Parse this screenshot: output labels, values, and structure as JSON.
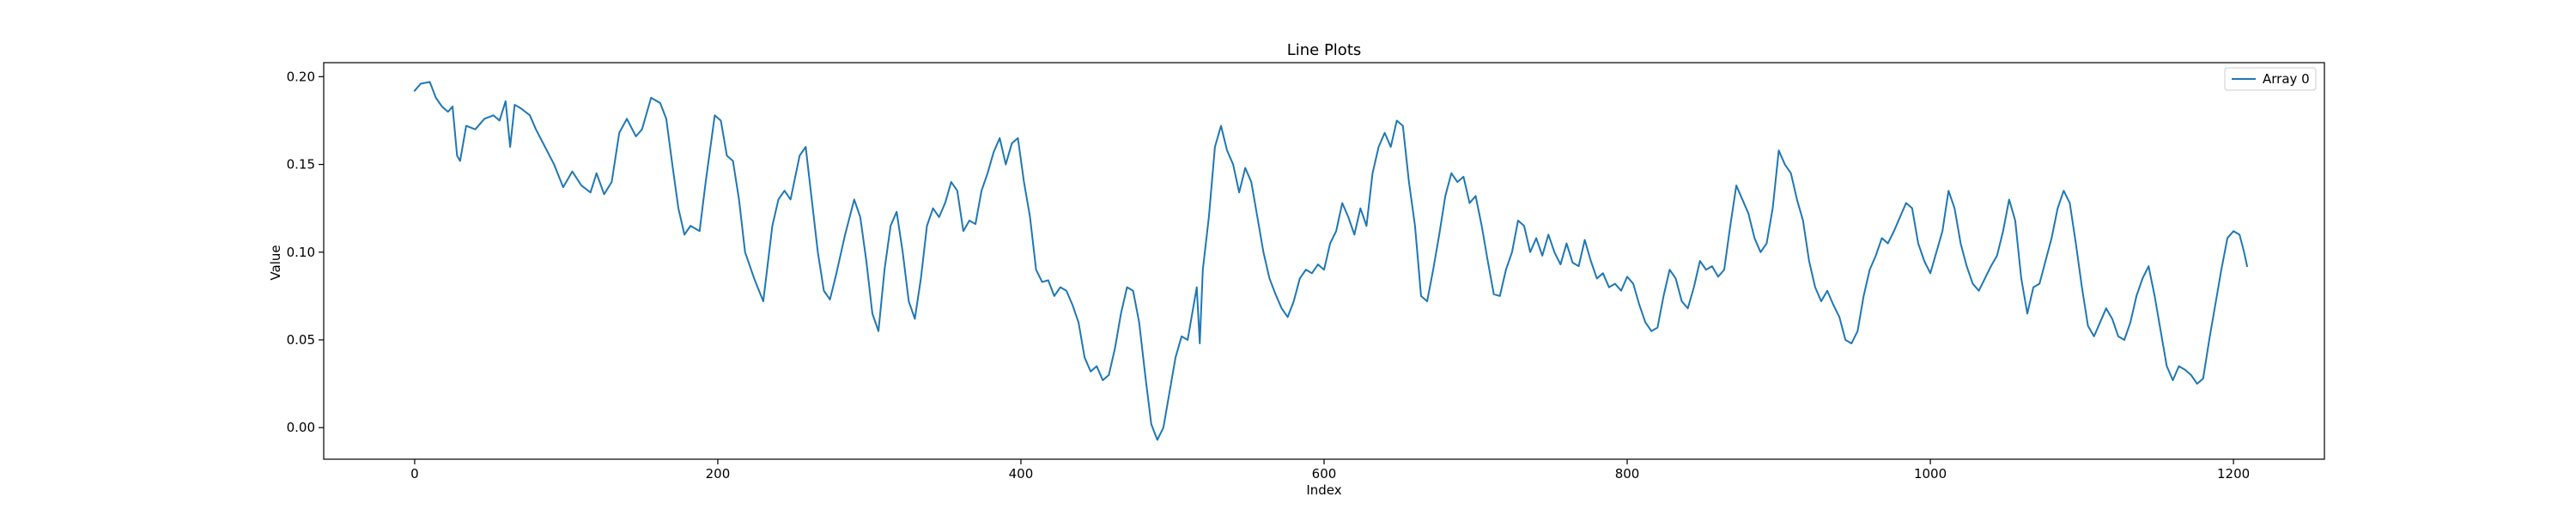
{
  "chart_data": {
    "type": "line",
    "title": "Line Plots",
    "xlabel": "Index",
    "ylabel": "Value",
    "xlim": [
      -60,
      1260
    ],
    "ylim": [
      -0.018,
      0.208
    ],
    "xticks": [
      0,
      200,
      400,
      600,
      800,
      1000,
      1200
    ],
    "xtick_labels": [
      "0",
      "200",
      "400",
      "600",
      "800",
      "1000",
      "1200"
    ],
    "yticks": [
      0.0,
      0.05,
      0.1,
      0.15,
      0.2
    ],
    "ytick_labels": [
      "0.00",
      "0.05",
      "0.10",
      "0.15",
      "0.20"
    ],
    "grid": false,
    "legend_position": "top-right",
    "line_color": "#1f77b4",
    "series": [
      {
        "name": "Array 0",
        "color": "#1f77b4",
        "points": [
          [
            0,
            0.192
          ],
          [
            4,
            0.196
          ],
          [
            10,
            0.197
          ],
          [
            14,
            0.188
          ],
          [
            18,
            0.183
          ],
          [
            22,
            0.18
          ],
          [
            25,
            0.183
          ],
          [
            28,
            0.155
          ],
          [
            30,
            0.152
          ],
          [
            34,
            0.172
          ],
          [
            40,
            0.17
          ],
          [
            46,
            0.176
          ],
          [
            52,
            0.178
          ],
          [
            56,
            0.175
          ],
          [
            60,
            0.186
          ],
          [
            63,
            0.16
          ],
          [
            66,
            0.184
          ],
          [
            70,
            0.182
          ],
          [
            76,
            0.178
          ],
          [
            80,
            0.17
          ],
          [
            86,
            0.16
          ],
          [
            92,
            0.15
          ],
          [
            98,
            0.137
          ],
          [
            104,
            0.146
          ],
          [
            110,
            0.138
          ],
          [
            116,
            0.134
          ],
          [
            120,
            0.145
          ],
          [
            125,
            0.133
          ],
          [
            130,
            0.14
          ],
          [
            135,
            0.168
          ],
          [
            140,
            0.176
          ],
          [
            146,
            0.166
          ],
          [
            150,
            0.17
          ],
          [
            156,
            0.188
          ],
          [
            162,
            0.185
          ],
          [
            166,
            0.176
          ],
          [
            170,
            0.15
          ],
          [
            174,
            0.125
          ],
          [
            178,
            0.11
          ],
          [
            182,
            0.115
          ],
          [
            188,
            0.112
          ],
          [
            192,
            0.14
          ],
          [
            198,
            0.178
          ],
          [
            202,
            0.175
          ],
          [
            206,
            0.155
          ],
          [
            210,
            0.152
          ],
          [
            214,
            0.13
          ],
          [
            218,
            0.1
          ],
          [
            224,
            0.085
          ],
          [
            230,
            0.072
          ],
          [
            236,
            0.115
          ],
          [
            240,
            0.13
          ],
          [
            244,
            0.135
          ],
          [
            248,
            0.13
          ],
          [
            254,
            0.155
          ],
          [
            258,
            0.16
          ],
          [
            262,
            0.13
          ],
          [
            266,
            0.1
          ],
          [
            270,
            0.078
          ],
          [
            274,
            0.073
          ],
          [
            278,
            0.087
          ],
          [
            284,
            0.11
          ],
          [
            290,
            0.13
          ],
          [
            294,
            0.12
          ],
          [
            298,
            0.095
          ],
          [
            302,
            0.065
          ],
          [
            306,
            0.055
          ],
          [
            310,
            0.09
          ],
          [
            314,
            0.115
          ],
          [
            318,
            0.123
          ],
          [
            322,
            0.1
          ],
          [
            326,
            0.072
          ],
          [
            330,
            0.062
          ],
          [
            334,
            0.085
          ],
          [
            338,
            0.115
          ],
          [
            342,
            0.125
          ],
          [
            346,
            0.12
          ],
          [
            350,
            0.128
          ],
          [
            354,
            0.14
          ],
          [
            358,
            0.135
          ],
          [
            362,
            0.112
          ],
          [
            366,
            0.118
          ],
          [
            370,
            0.116
          ],
          [
            374,
            0.135
          ],
          [
            378,
            0.145
          ],
          [
            382,
            0.157
          ],
          [
            386,
            0.165
          ],
          [
            390,
            0.15
          ],
          [
            394,
            0.162
          ],
          [
            398,
            0.165
          ],
          [
            402,
            0.14
          ],
          [
            406,
            0.12
          ],
          [
            410,
            0.09
          ],
          [
            414,
            0.083
          ],
          [
            418,
            0.084
          ],
          [
            422,
            0.075
          ],
          [
            426,
            0.08
          ],
          [
            430,
            0.078
          ],
          [
            434,
            0.07
          ],
          [
            438,
            0.06
          ],
          [
            442,
            0.04
          ],
          [
            446,
            0.032
          ],
          [
            450,
            0.035
          ],
          [
            454,
            0.027
          ],
          [
            458,
            0.03
          ],
          [
            462,
            0.045
          ],
          [
            466,
            0.065
          ],
          [
            470,
            0.08
          ],
          [
            474,
            0.078
          ],
          [
            478,
            0.06
          ],
          [
            482,
            0.03
          ],
          [
            486,
            0.002
          ],
          [
            490,
            -0.007
          ],
          [
            494,
            0.0
          ],
          [
            498,
            0.02
          ],
          [
            502,
            0.04
          ],
          [
            506,
            0.052
          ],
          [
            510,
            0.05
          ],
          [
            514,
            0.07
          ],
          [
            516,
            0.08
          ],
          [
            518,
            0.048
          ],
          [
            520,
            0.09
          ],
          [
            524,
            0.12
          ],
          [
            528,
            0.16
          ],
          [
            532,
            0.172
          ],
          [
            536,
            0.158
          ],
          [
            540,
            0.15
          ],
          [
            544,
            0.134
          ],
          [
            548,
            0.148
          ],
          [
            552,
            0.14
          ],
          [
            556,
            0.12
          ],
          [
            560,
            0.1
          ],
          [
            564,
            0.085
          ],
          [
            568,
            0.076
          ],
          [
            572,
            0.068
          ],
          [
            576,
            0.063
          ],
          [
            580,
            0.072
          ],
          [
            584,
            0.085
          ],
          [
            588,
            0.09
          ],
          [
            592,
            0.088
          ],
          [
            596,
            0.093
          ],
          [
            600,
            0.09
          ],
          [
            604,
            0.105
          ],
          [
            608,
            0.112
          ],
          [
            612,
            0.128
          ],
          [
            616,
            0.12
          ],
          [
            620,
            0.11
          ],
          [
            624,
            0.125
          ],
          [
            628,
            0.115
          ],
          [
            632,
            0.145
          ],
          [
            636,
            0.16
          ],
          [
            640,
            0.168
          ],
          [
            644,
            0.16
          ],
          [
            648,
            0.175
          ],
          [
            652,
            0.172
          ],
          [
            656,
            0.14
          ],
          [
            660,
            0.115
          ],
          [
            664,
            0.075
          ],
          [
            668,
            0.072
          ],
          [
            672,
            0.09
          ],
          [
            676,
            0.11
          ],
          [
            680,
            0.132
          ],
          [
            684,
            0.145
          ],
          [
            688,
            0.14
          ],
          [
            692,
            0.143
          ],
          [
            696,
            0.128
          ],
          [
            700,
            0.132
          ],
          [
            704,
            0.115
          ],
          [
            708,
            0.095
          ],
          [
            712,
            0.076
          ],
          [
            716,
            0.075
          ],
          [
            720,
            0.09
          ],
          [
            724,
            0.1
          ],
          [
            728,
            0.118
          ],
          [
            732,
            0.115
          ],
          [
            736,
            0.1
          ],
          [
            740,
            0.108
          ],
          [
            744,
            0.098
          ],
          [
            748,
            0.11
          ],
          [
            752,
            0.1
          ],
          [
            756,
            0.093
          ],
          [
            760,
            0.105
          ],
          [
            764,
            0.094
          ],
          [
            768,
            0.092
          ],
          [
            772,
            0.107
          ],
          [
            776,
            0.095
          ],
          [
            780,
            0.085
          ],
          [
            784,
            0.088
          ],
          [
            788,
            0.08
          ],
          [
            792,
            0.082
          ],
          [
            796,
            0.078
          ],
          [
            800,
            0.086
          ],
          [
            804,
            0.082
          ],
          [
            808,
            0.07
          ],
          [
            812,
            0.06
          ],
          [
            816,
            0.055
          ],
          [
            820,
            0.057
          ],
          [
            824,
            0.075
          ],
          [
            828,
            0.09
          ],
          [
            832,
            0.085
          ],
          [
            836,
            0.072
          ],
          [
            840,
            0.068
          ],
          [
            844,
            0.08
          ],
          [
            848,
            0.095
          ],
          [
            852,
            0.09
          ],
          [
            856,
            0.092
          ],
          [
            860,
            0.086
          ],
          [
            864,
            0.09
          ],
          [
            868,
            0.115
          ],
          [
            872,
            0.138
          ],
          [
            876,
            0.13
          ],
          [
            880,
            0.122
          ],
          [
            884,
            0.108
          ],
          [
            888,
            0.1
          ],
          [
            892,
            0.105
          ],
          [
            896,
            0.125
          ],
          [
            900,
            0.158
          ],
          [
            904,
            0.15
          ],
          [
            908,
            0.145
          ],
          [
            912,
            0.13
          ],
          [
            916,
            0.118
          ],
          [
            920,
            0.095
          ],
          [
            924,
            0.08
          ],
          [
            928,
            0.072
          ],
          [
            932,
            0.078
          ],
          [
            936,
            0.07
          ],
          [
            940,
            0.063
          ],
          [
            944,
            0.05
          ],
          [
            948,
            0.048
          ],
          [
            952,
            0.055
          ],
          [
            956,
            0.075
          ],
          [
            960,
            0.09
          ],
          [
            964,
            0.098
          ],
          [
            968,
            0.108
          ],
          [
            972,
            0.105
          ],
          [
            976,
            0.112
          ],
          [
            980,
            0.12
          ],
          [
            984,
            0.128
          ],
          [
            988,
            0.125
          ],
          [
            992,
            0.105
          ],
          [
            996,
            0.095
          ],
          [
            1000,
            0.088
          ],
          [
            1004,
            0.1
          ],
          [
            1008,
            0.112
          ],
          [
            1012,
            0.135
          ],
          [
            1016,
            0.125
          ],
          [
            1020,
            0.105
          ],
          [
            1024,
            0.092
          ],
          [
            1028,
            0.082
          ],
          [
            1032,
            0.078
          ],
          [
            1036,
            0.085
          ],
          [
            1040,
            0.092
          ],
          [
            1044,
            0.098
          ],
          [
            1048,
            0.112
          ],
          [
            1052,
            0.13
          ],
          [
            1056,
            0.118
          ],
          [
            1060,
            0.085
          ],
          [
            1064,
            0.065
          ],
          [
            1068,
            0.08
          ],
          [
            1072,
            0.082
          ],
          [
            1076,
            0.095
          ],
          [
            1080,
            0.108
          ],
          [
            1084,
            0.125
          ],
          [
            1088,
            0.135
          ],
          [
            1092,
            0.128
          ],
          [
            1096,
            0.105
          ],
          [
            1100,
            0.08
          ],
          [
            1104,
            0.058
          ],
          [
            1108,
            0.052
          ],
          [
            1112,
            0.06
          ],
          [
            1116,
            0.068
          ],
          [
            1120,
            0.062
          ],
          [
            1124,
            0.052
          ],
          [
            1128,
            0.05
          ],
          [
            1132,
            0.06
          ],
          [
            1136,
            0.075
          ],
          [
            1140,
            0.085
          ],
          [
            1144,
            0.092
          ],
          [
            1148,
            0.075
          ],
          [
            1152,
            0.055
          ],
          [
            1156,
            0.035
          ],
          [
            1160,
            0.027
          ],
          [
            1164,
            0.035
          ],
          [
            1168,
            0.033
          ],
          [
            1172,
            0.03
          ],
          [
            1176,
            0.025
          ],
          [
            1180,
            0.028
          ],
          [
            1184,
            0.05
          ],
          [
            1188,
            0.07
          ],
          [
            1192,
            0.09
          ],
          [
            1196,
            0.108
          ],
          [
            1200,
            0.112
          ],
          [
            1204,
            0.11
          ],
          [
            1207,
            0.1
          ],
          [
            1209,
            0.092
          ]
        ]
      }
    ]
  }
}
